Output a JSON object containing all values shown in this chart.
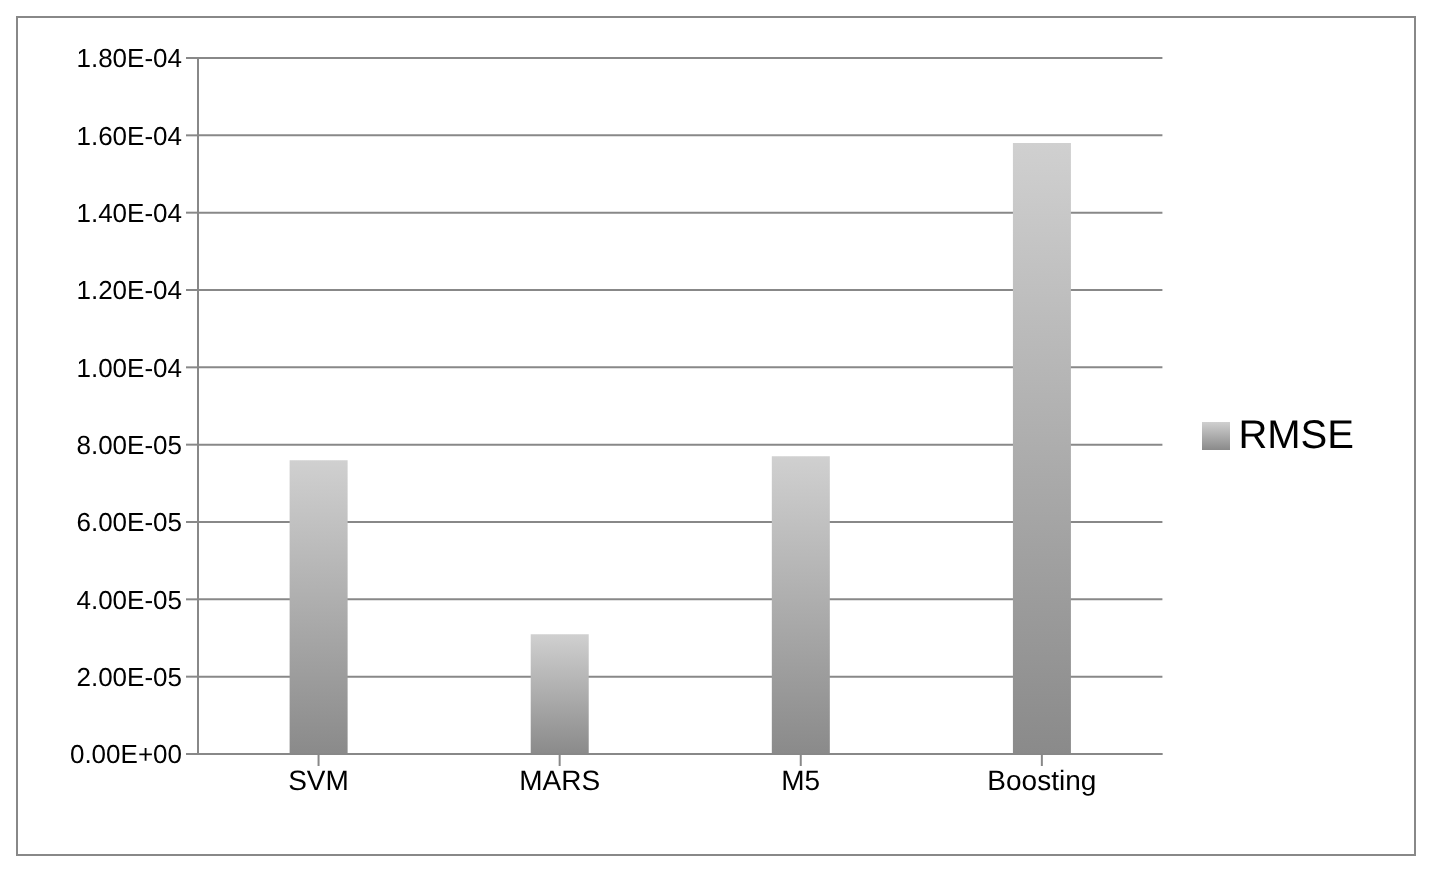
{
  "chart_data": {
    "type": "bar",
    "categories": [
      "SVM",
      "MARS",
      "M5",
      "Boosting"
    ],
    "series": [
      {
        "name": "RMSE",
        "color": "#8a8a8a",
        "values": [
          7.6e-05,
          3.1e-05,
          7.7e-05,
          0.000158
        ]
      }
    ],
    "ylim": [
      0,
      0.00018
    ],
    "yticks": [
      {
        "value": 0,
        "label": "0.00E+00"
      },
      {
        "value": 2e-05,
        "label": "2.00E-05"
      },
      {
        "value": 4e-05,
        "label": "4.00E-05"
      },
      {
        "value": 6e-05,
        "label": "6.00E-05"
      },
      {
        "value": 8e-05,
        "label": "8.00E-05"
      },
      {
        "value": 0.0001,
        "label": "1.00E-04"
      },
      {
        "value": 0.00012,
        "label": "1.20E-04"
      },
      {
        "value": 0.00014,
        "label": "1.40E-04"
      },
      {
        "value": 0.00016,
        "label": "1.60E-04"
      },
      {
        "value": 0.00018,
        "label": "1.80E-04"
      }
    ],
    "grid": "y",
    "legend": "right"
  }
}
